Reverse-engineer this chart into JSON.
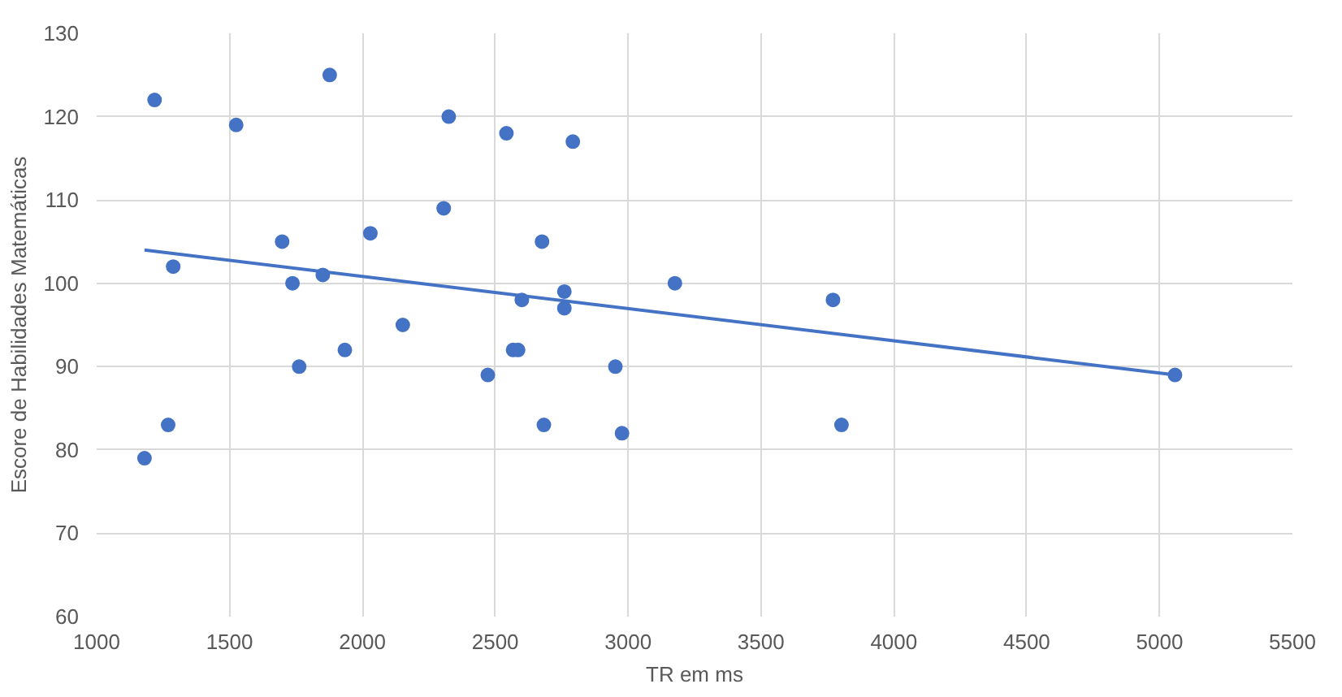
{
  "chart_data": {
    "type": "scatter",
    "xlabel": "TR em ms",
    "ylabel": "Escore de Habilidades Matemáticas",
    "xlim": [
      1000,
      5500
    ],
    "xticks": [
      1000,
      1500,
      2000,
      2500,
      3000,
      3500,
      4000,
      4500,
      5000,
      5500
    ],
    "ylim": [
      60,
      130
    ],
    "yticks": [
      60,
      70,
      80,
      90,
      100,
      110,
      120,
      130
    ],
    "grid": true,
    "series": [
      {
        "marker": "circle",
        "color": "#4472c4",
        "x": [
          1180,
          1218,
          1269,
          1288,
          1525,
          1698,
          1737,
          1762,
          1851,
          1877,
          1934,
          2030,
          2152,
          2306,
          2325,
          2472,
          2542,
          2567,
          2586,
          2600,
          2676,
          2683,
          2760,
          2760,
          2792,
          2952,
          2977,
          3176,
          3771,
          3803,
          5058
        ],
        "values": [
          79,
          122,
          83,
          102,
          119,
          105,
          100,
          90,
          101,
          125,
          92,
          106,
          95,
          109,
          120,
          89,
          118,
          92,
          92,
          98,
          105,
          83,
          99,
          97,
          117,
          90,
          82,
          100,
          98,
          83,
          89
        ]
      },
      {
        "type": "line",
        "marker": "none",
        "color": "#4472c4",
        "x": [
          1180,
          5058
        ],
        "values": [
          104,
          89
        ]
      }
    ]
  }
}
